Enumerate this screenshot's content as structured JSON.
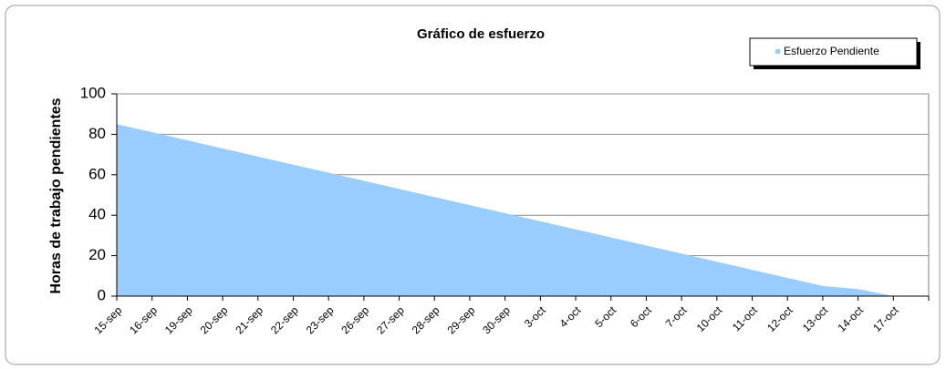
{
  "chart_data": {
    "type": "area",
    "title": "Gráfico de esfuerzo",
    "y_label": "Horas de trabajo pendientes",
    "categories": [
      "15-sep",
      "16-sep",
      "19-sep",
      "20-sep",
      "21-sep",
      "22-sep",
      "23-sep",
      "26-sep",
      "27-sep",
      "28-sep",
      "29-sep",
      "30-sep",
      "3-oct",
      "4-oct",
      "5-oct",
      "6-oct",
      "7-oct",
      "10-oct",
      "11-oct",
      "12-oct",
      "13-oct",
      "14-oct",
      "17-oct",
      null
    ],
    "series": [
      {
        "name": "Esfuerzo Pendiente",
        "color": "#99ccff",
        "values": [
          85,
          81,
          77,
          73,
          69,
          65,
          61,
          57,
          53,
          49,
          45,
          41,
          37,
          33,
          29,
          25,
          21,
          17,
          13,
          9,
          5,
          3.5,
          0,
          0
        ]
      }
    ],
    "ylim": [
      0,
      100
    ],
    "yticks": [
      0,
      20,
      40,
      60,
      80,
      100
    ],
    "grid": true,
    "legend": "top-right"
  }
}
